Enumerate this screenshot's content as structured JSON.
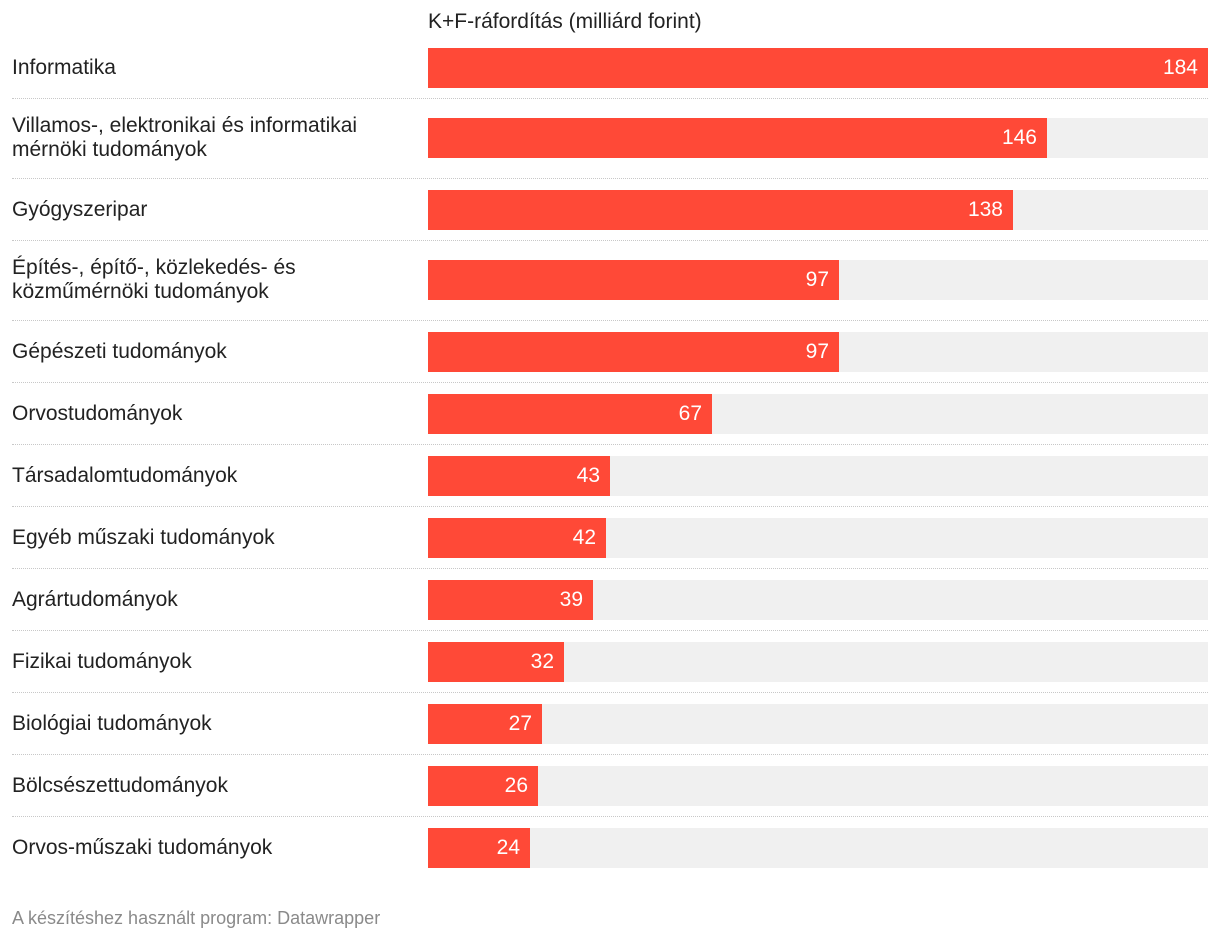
{
  "chart_data": {
    "type": "bar",
    "orientation": "horizontal",
    "title": "K+F-ráfordítás (milliárd forint)",
    "categories": [
      "Informatika",
      "Villamos-, elektronikai és informatikai mérnöki tudományok",
      "Gyógyszeripar",
      "Építés-, építő-, közlekedés- és közműmérnöki tudományok",
      "Gépészeti tudományok",
      "Orvostudományok",
      "Társadalomtudományok",
      "Egyéb műszaki tudományok",
      "Agrártudományok",
      "Fizikai tudományok",
      "Biológiai tudományok",
      "Bölcsészettudományok",
      "Orvos-műszaki tudományok"
    ],
    "values": [
      184,
      146,
      138,
      97,
      97,
      67,
      43,
      42,
      39,
      32,
      27,
      26,
      24
    ],
    "xlim": [
      0,
      184
    ],
    "grid": false,
    "bar_color": "#ff4937",
    "track_color": "#f0f0f0"
  },
  "footer": "A készítéshez használt program: Datawrapper"
}
